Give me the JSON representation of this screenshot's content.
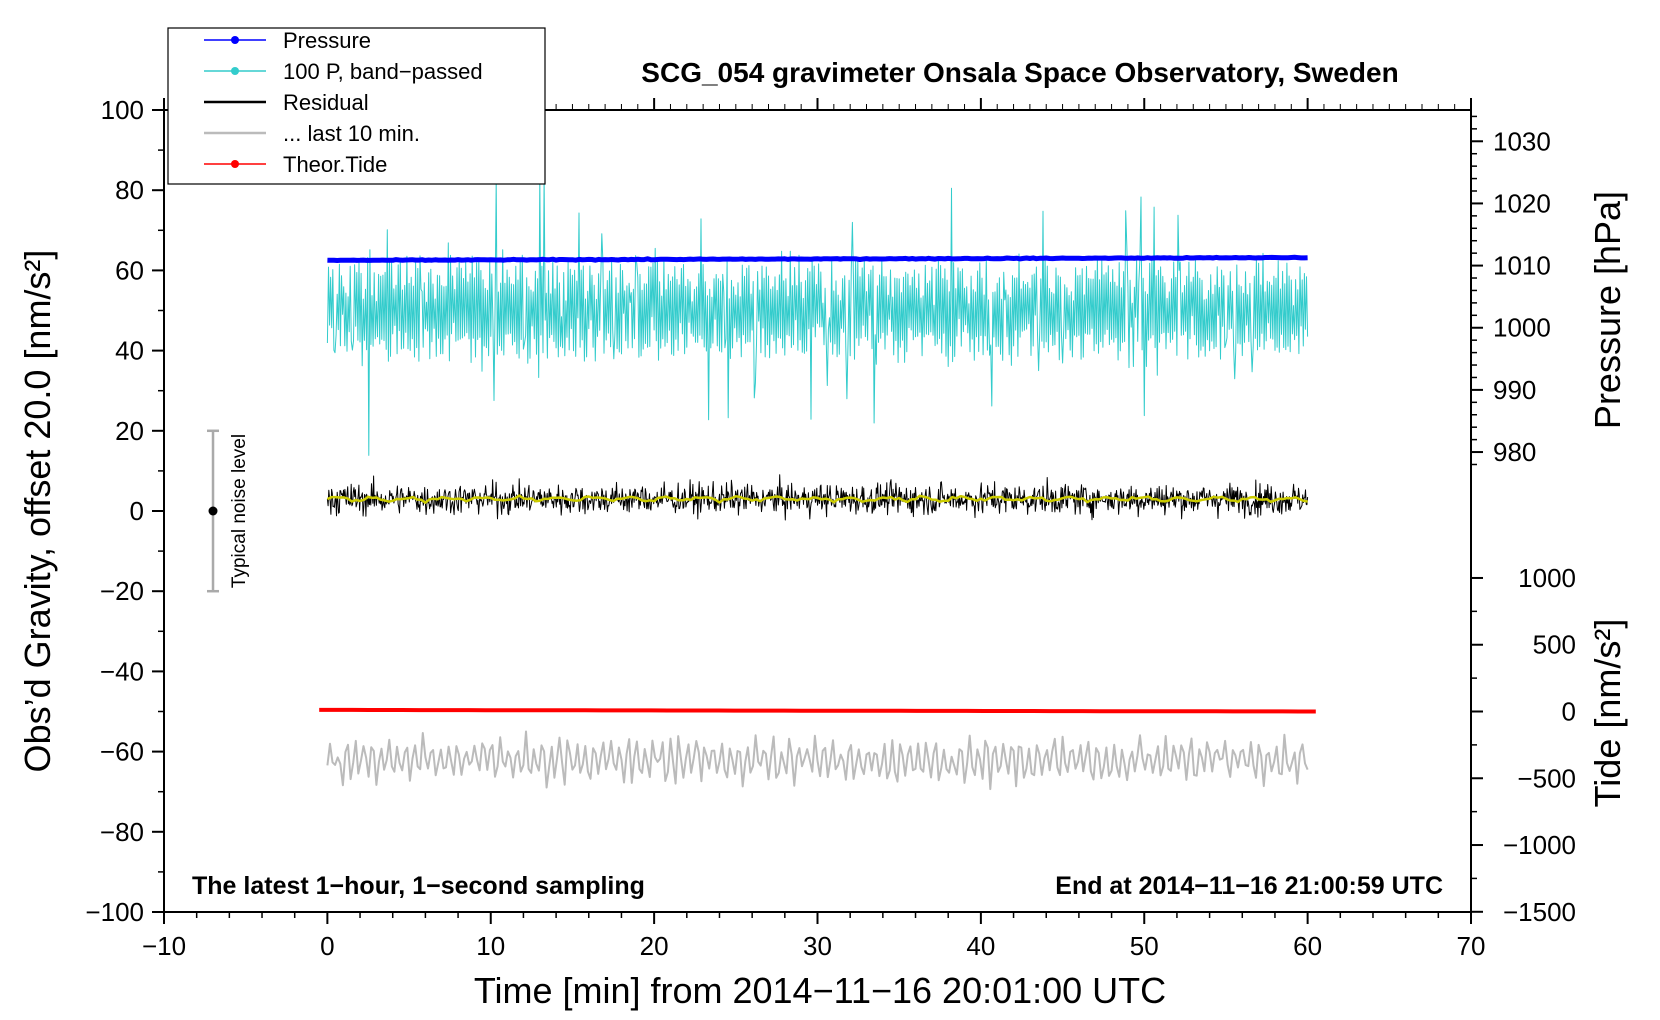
{
  "chart_data": {
    "type": "line",
    "title": "SCG_054 gravimeter Onsala Space Observatory, Sweden",
    "xlabel": "Time [min] from 2014−11−16 20:01:00 UTC",
    "ylabel": "Obs’d Gravity, offset 20.0 [nm/s²]",
    "ylabel_right_top": "Pressure [hPa]",
    "ylabel_right_bottom": "Tide [nm/s²]",
    "xlim": [
      -10,
      70
    ],
    "ylim": [
      -100,
      100
    ],
    "x_ticks": [
      -10,
      0,
      10,
      20,
      30,
      40,
      50,
      60,
      70
    ],
    "y_ticks": [
      -100,
      -80,
      -60,
      -40,
      -20,
      0,
      20,
      40,
      60,
      80,
      100
    ],
    "x_tick_labels": [
      "−10",
      "0",
      "10",
      "20",
      "30",
      "40",
      "50",
      "60",
      "70"
    ],
    "y_tick_labels": [
      "−100",
      "−80",
      "−60",
      "−40",
      "−20",
      "0",
      "20",
      "40",
      "60",
      "80",
      "100"
    ],
    "pressure_axis": {
      "ticks": [
        980,
        990,
        1000,
        1010,
        1020,
        1030
      ],
      "tick_labels": [
        "980",
        "990",
        "1000",
        "1010",
        "1020",
        "1030"
      ],
      "gravity_at_1010": 61.2,
      "gravity_per_hPa": 1.55
    },
    "tide_axis": {
      "ticks": [
        -1500,
        -1000,
        -500,
        0,
        500,
        1000
      ],
      "tick_labels": [
        "−1500",
        "−1000",
        "−500",
        "0",
        "500",
        "1000"
      ],
      "gravity_at_0": -50,
      "gravity_per_unit": 0.0333
    },
    "legend": {
      "position": "top-left",
      "entries": [
        {
          "label": "Pressure",
          "color": "#0000ff",
          "marker": "dot"
        },
        {
          "label": "100 P, band−passed",
          "color": "#33cccc",
          "marker": "dot"
        },
        {
          "label": "Residual",
          "color": "#000000",
          "marker": "none"
        },
        {
          "label": "... last 10 min.",
          "color": "#bbbbbb",
          "marker": "none"
        },
        {
          "label": "Theor.Tide",
          "color": "#ff0000",
          "marker": "dot"
        }
      ]
    },
    "series": [
      {
        "name": "Pressure",
        "color": "#0000ff",
        "x_range": [
          0,
          60
        ],
        "start": 62.5,
        "end": 63.2,
        "noise": 0.3,
        "unit": "gravity-scale"
      },
      {
        "name": "100 P, band−passed",
        "color": "#33cccc",
        "x_range": [
          0,
          60
        ],
        "mean": 50,
        "amplitude": 12,
        "min": 13,
        "max": 84
      },
      {
        "name": "Residual",
        "color": "#000000",
        "x_range": [
          0,
          60
        ],
        "mean": 3,
        "amplitude": 6,
        "min": -9,
        "max": 15
      },
      {
        "name": "Residual smoothed",
        "color": "#cccc00",
        "x_range": [
          0,
          60
        ],
        "mean": 3,
        "amplitude": 0.8
      },
      {
        "name": "... last 10 min.",
        "color": "#bbbbbb",
        "x_range": [
          0,
          60
        ],
        "mean": -62,
        "amplitude": 6,
        "min": -71,
        "max": -49
      },
      {
        "name": "Theor.Tide",
        "color": "#ff0000",
        "x_range": [
          -0.5,
          60.5
        ],
        "start": -49.6,
        "end": -50.0
      }
    ],
    "noise_bar": {
      "label": "Typical noise level",
      "x": -7,
      "center": 0,
      "low": -20,
      "high": 20
    },
    "annotations": {
      "bottom_left": "The latest 1−hour, 1−second sampling",
      "bottom_right": "End at 2014−11−16 21:00:59 UTC"
    },
    "grid": false
  },
  "colors": {
    "pressure": "#0000ff",
    "bandpassed": "#33cccc",
    "residual": "#000000",
    "smoothed": "#cccc00",
    "last10": "#bbbbbb",
    "tide": "#ff0000",
    "noise_bar": "#aaaaaa"
  }
}
